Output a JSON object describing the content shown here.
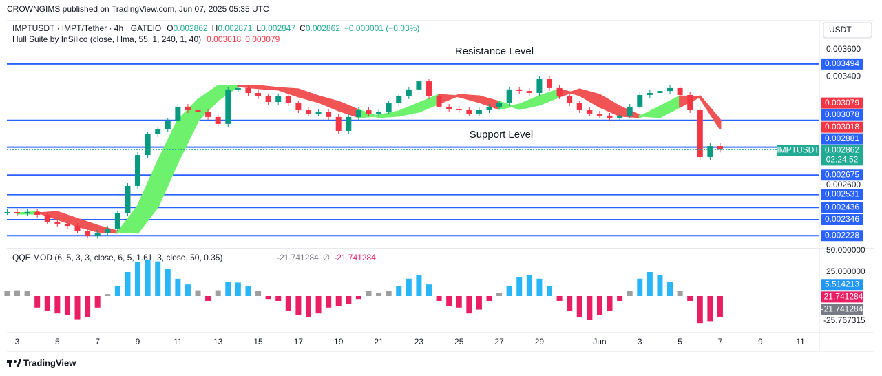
{
  "header": {
    "published": "CROWNGIMS published on TradingView.com, Jun 07, 2025 05:35 UTC",
    "brand": "TradingView"
  },
  "symbol": {
    "title": "IMPTUSDT · IMPT/Tether · 4h · GATEIO",
    "ohlc": [
      {
        "label": "O",
        "value": "0.002862"
      },
      {
        "label": "H",
        "value": "0.002871"
      },
      {
        "label": "L",
        "value": "0.002847"
      },
      {
        "label": "C",
        "value": "0.002862"
      }
    ],
    "change": "−0.000001 (−0.03%)",
    "ticker": "IMPTUSDT",
    "countdown": "02:24:52",
    "color": "#22ab94"
  },
  "price_axis": {
    "unit": "USDT",
    "ylim": [
      0.002138,
      0.003813
    ],
    "ticks": [
      {
        "value": 0.0036,
        "label": "0.003600"
      },
      {
        "value": 0.0034,
        "label": "0.003400"
      },
      {
        "value": 0.0026,
        "label": "0.002600"
      }
    ]
  },
  "levels": {
    "color": "#2962ff",
    "values": [
      0.003494,
      0.003078,
      0.002881,
      0.002675,
      0.002531,
      0.002436,
      0.002346,
      0.002228
    ]
  },
  "annotations": {
    "color": "#e53935",
    "resistance": "Resistance Level",
    "support": "Support Level"
  },
  "candles": {
    "up_color": "#089981",
    "down_color": "#f23645",
    "closes": [
      0.002402,
      0.002392,
      0.002402,
      0.002382,
      0.002331,
      0.002316,
      0.0023,
      0.002265,
      0.002229,
      0.00225,
      0.00228,
      0.002392,
      0.002595,
      0.002823,
      0.002976,
      0.003011,
      0.003077,
      0.003179,
      0.003153,
      0.003143,
      0.003103,
      0.003052,
      0.003306,
      0.003316,
      0.00328,
      0.003255,
      0.003214,
      0.003255,
      0.003204,
      0.003153,
      0.003128,
      0.003143,
      0.003103,
      0.003001,
      0.003103,
      0.003153,
      0.003128,
      0.003143,
      0.003204,
      0.003255,
      0.003306,
      0.003366,
      0.003255,
      0.003179,
      0.003163,
      0.003153,
      0.003128,
      0.003153,
      0.003179,
      0.003204,
      0.003306,
      0.003295,
      0.00328,
      0.003382,
      0.003316,
      0.003255,
      0.003204,
      0.003153,
      0.003128,
      0.003113,
      0.003092,
      0.003113,
      0.003179,
      0.003265,
      0.00328,
      0.003295,
      0.003316,
      0.003265,
      0.003153,
      0.002808,
      0.002889,
      0.002862
    ]
  },
  "hull": {
    "name": "Hull Suite by InSilico (close, Hma, 55, 1, 240, 1, 40)",
    "up_color": "#6ef26e",
    "down_color": "#f05454",
    "series": [
      {
        "values": [
          0.002392,
          0.002402,
          0.002351,
          0.0023,
          0.002259,
          0.00225,
          0.002443,
          0.002773,
          0.003077,
          0.003229,
          0.003331,
          0.003331,
          0.003316,
          0.003306,
          0.003255,
          0.003214,
          0.003153,
          0.003103,
          0.003113,
          0.003143,
          0.003204,
          0.003265,
          0.003255,
          0.003214,
          0.003163,
          0.003194,
          0.003255,
          0.003306,
          0.003265,
          0.003179,
          0.003113,
          0.003103,
          0.003179,
          0.003255,
          0.003245,
          0.003018
        ]
      },
      {
        "values": [
          0.002392,
          0.002392,
          0.002402,
          0.002351,
          0.0023,
          0.002259,
          0.00225,
          0.002443,
          0.002773,
          0.003077,
          0.003229,
          0.003331,
          0.003331,
          0.003316,
          0.003306,
          0.003255,
          0.003214,
          0.003153,
          0.003103,
          0.003113,
          0.003143,
          0.003204,
          0.003265,
          0.003255,
          0.003214,
          0.003163,
          0.003194,
          0.003255,
          0.003306,
          0.003265,
          0.003179,
          0.003113,
          0.003103,
          0.003179,
          0.003255,
          0.003079
        ]
      }
    ]
  },
  "qqe": {
    "name": "QQE MOD (6, 5, 3, 3, close, 6, 5, 1.61, 3, close, 50, 0.35)",
    "separator": "∅",
    "up_color": "#29b6f6",
    "neutral_color": "#9e9e9e",
    "down_color": "#e91e63",
    "line_color": "#787b86",
    "ylim": [
      -39.3,
      50
    ],
    "ticks": [
      {
        "value": 50,
        "label": "50.000000"
      },
      {
        "value": 25,
        "label": "25.000000"
      }
    ],
    "low_value": -25.767315,
    "signal_value": 5.514213,
    "line_value": -21.741284,
    "values": [
      5,
      6,
      5,
      -12,
      -15,
      -18,
      -20,
      -24,
      -22,
      -12,
      2,
      10,
      25,
      35,
      38,
      36,
      28,
      18,
      12,
      6,
      -5,
      6,
      15,
      14,
      10,
      5,
      -3,
      -5,
      -15,
      -20,
      -22,
      -18,
      -12,
      -10,
      -8,
      -3,
      5,
      3,
      5,
      10,
      18,
      22,
      12,
      -5,
      -10,
      -12,
      -18,
      -14,
      -5,
      3,
      10,
      20,
      22,
      18,
      10,
      -5,
      -15,
      -22,
      -25,
      -20,
      -15,
      -5,
      5,
      18,
      25,
      22,
      15,
      5,
      -5,
      -28,
      -26,
      -21.741284
    ]
  },
  "time_axis": {
    "labels": [
      "3",
      "5",
      "7",
      "9",
      "11",
      "13",
      "15",
      "17",
      "19",
      "21",
      "23",
      "25",
      "27",
      "29",
      "Jun",
      "3",
      "5",
      "7",
      "9",
      "11"
    ]
  }
}
